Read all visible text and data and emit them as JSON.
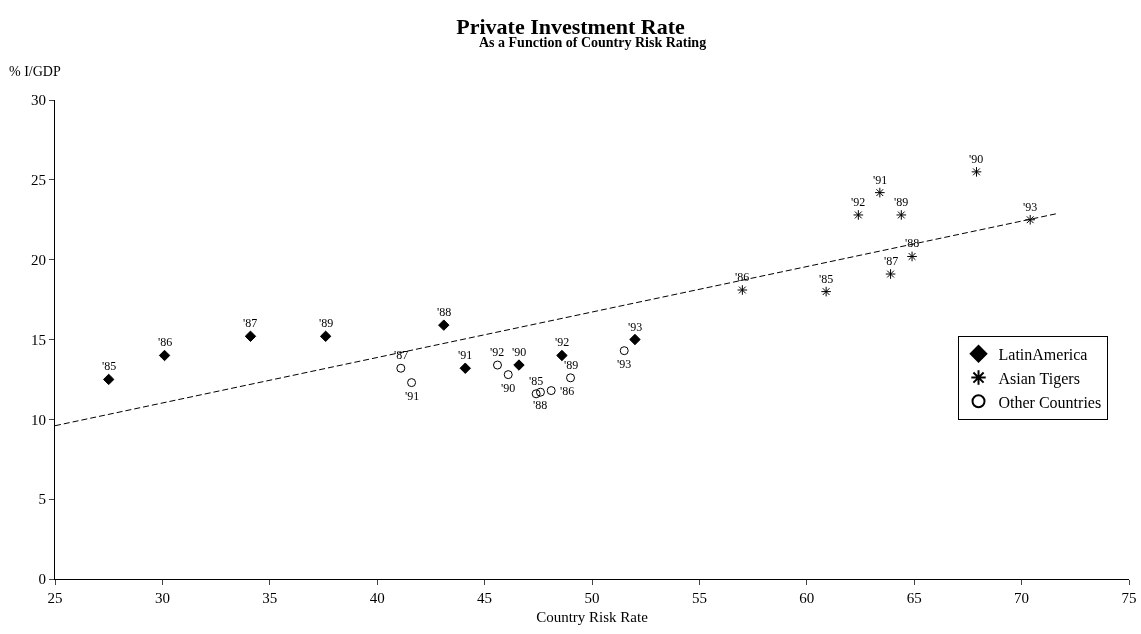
{
  "chart_data": {
    "type": "scatter",
    "title": "Private Investment Rate",
    "subtitle": "As a Function of Country Risk Rating",
    "xlabel": "Country Risk Rate",
    "ylabel": "% I/GDP",
    "xlim": [
      25,
      75
    ],
    "xticks": [
      25,
      30,
      35,
      40,
      45,
      50,
      55,
      60,
      65,
      70,
      75
    ],
    "ylim": [
      0,
      30
    ],
    "yticks": [
      0,
      5,
      10,
      15,
      20,
      25,
      30
    ],
    "grid": false,
    "legend": "right",
    "series": [
      {
        "name": "LatinAmerica",
        "color": "#000000",
        "marker": "diamond",
        "x": [
          27.5,
          30.1,
          34.1,
          37.6,
          43.1,
          44.1,
          46.6,
          48.6,
          52.0
        ],
        "values": [
          12.5,
          14.0,
          15.2,
          15.2,
          15.9,
          13.2,
          13.4,
          14.0,
          15.0
        ]
      },
      {
        "name": "Asian Tigers",
        "color": "#000000",
        "marker": "cross",
        "x": [
          57.0,
          60.9,
          63.9,
          64.9,
          64.4,
          62.4,
          63.4,
          67.9,
          70.4
        ],
        "values": [
          18.1,
          18.0,
          19.1,
          20.2,
          22.8,
          22.8,
          24.2,
          25.5,
          22.5
        ]
      },
      {
        "name": "Other Countries",
        "color": "#000000",
        "marker": "circle",
        "x": [
          41.1,
          41.6,
          45.6,
          46.1,
          47.4,
          47.6,
          48.1,
          49.0,
          51.5
        ],
        "values": [
          13.2,
          12.3,
          13.4,
          12.8,
          11.6,
          11.7,
          11.8,
          12.6,
          14.3
        ]
      },
      {
        "type": "line",
        "color": "#000000",
        "line_style": "dashed",
        "marker": "none",
        "x": [
          25,
          71.7
        ],
        "values": [
          9.6,
          22.9
        ]
      }
    ],
    "annotations": [
      {
        "text": "'85",
        "x": 27.5,
        "y": 12.5
      },
      {
        "text": "'86",
        "x": 30.1,
        "y": 14.0
      },
      {
        "text": "'87",
        "x": 34.1,
        "y": 15.2
      },
      {
        "text": "'89",
        "x": 37.6,
        "y": 15.2
      },
      {
        "text": "'88",
        "x": 43.1,
        "y": 15.9
      },
      {
        "text": "'91",
        "x": 44.1,
        "y": 13.2
      },
      {
        "text": "'90",
        "x": 46.6,
        "y": 13.4
      },
      {
        "text": "'92",
        "x": 48.6,
        "y": 14.0
      },
      {
        "text": "'93",
        "x": 52.0,
        "y": 15.0
      },
      {
        "text": "'86",
        "x": 57.0,
        "y": 18.1
      },
      {
        "text": "'85",
        "x": 60.9,
        "y": 18.0
      },
      {
        "text": "'87",
        "x": 63.9,
        "y": 19.1
      },
      {
        "text": "'88",
        "x": 64.9,
        "y": 20.2
      },
      {
        "text": "'89",
        "x": 64.4,
        "y": 22.8
      },
      {
        "text": "'92",
        "x": 62.4,
        "y": 22.8
      },
      {
        "text": "'91",
        "x": 63.4,
        "y": 24.2
      },
      {
        "text": "'90",
        "x": 67.9,
        "y": 25.5
      },
      {
        "text": "'93",
        "x": 70.4,
        "y": 22.5
      },
      {
        "text": "'87",
        "x": 41.1,
        "y": 13.2
      },
      {
        "text": "'91",
        "x": 41.6,
        "y": 12.3
      },
      {
        "text": "'92",
        "x": 45.6,
        "y": 13.4
      },
      {
        "text": "'90",
        "x": 46.1,
        "y": 12.8
      },
      {
        "text": "'85",
        "x": 47.4,
        "y": 11.6
      },
      {
        "text": "'88",
        "x": 47.6,
        "y": 11.7
      },
      {
        "text": "'86",
        "x": 48.1,
        "y": 11.8
      },
      {
        "text": "'89",
        "x": 49.0,
        "y": 12.6
      },
      {
        "text": "'93",
        "x": 51.5,
        "y": 14.3
      }
    ]
  }
}
